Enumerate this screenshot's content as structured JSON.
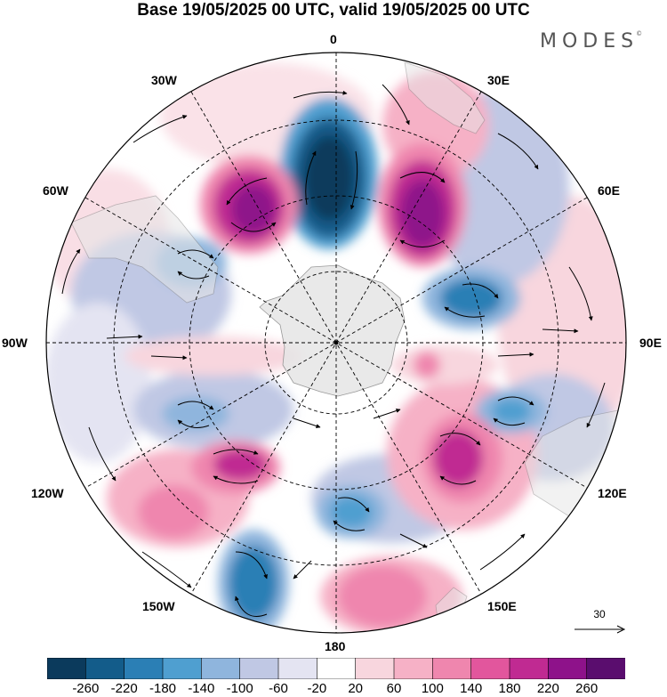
{
  "title": "Base 19/05/2025 00 UTC, valid 19/05/2025 00 UTC",
  "logo": "MODES",
  "logo_mark": "©",
  "longitude_labels": {
    "lon_0": "0",
    "lon_30e": "30E",
    "lon_60e": "60E",
    "lon_90e": "90E",
    "lon_120e": "120E",
    "lon_150e": "150E",
    "lon_180": "180",
    "lon_150w": "150W",
    "lon_120w": "120W",
    "lon_90w": "90W",
    "lon_60w": "60W",
    "lon_30w": "30W"
  },
  "vector_reference": {
    "label": "30",
    "magnitude": 30
  },
  "colorbar": {
    "ticks": [
      "-260",
      "-220",
      "-180",
      "-140",
      "-100",
      "-60",
      "-20",
      "20",
      "60",
      "100",
      "140",
      "180",
      "220",
      "260"
    ],
    "colors": [
      "#0b3a5c",
      "#135c8a",
      "#2b7fb5",
      "#4f9fd0",
      "#8fb5dd",
      "#c0c8e4",
      "#e4e4f2",
      "#ffffff",
      "#f8d6de",
      "#f6b1c6",
      "#ef86ae",
      "#e2569d",
      "#c02a92",
      "#8e128a",
      "#5a0d6e"
    ]
  },
  "colors": {
    "land": "#e6e6e6",
    "coast": "#888888",
    "grid": "#000000"
  }
}
